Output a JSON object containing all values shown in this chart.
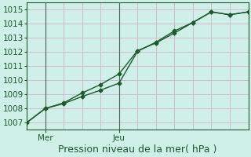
{
  "title": "Pression niveau de la mer( hPa )",
  "background_color": "#cff0e8",
  "plot_bg_color": "#cff0e8",
  "grid_color": "#d8b8d0",
  "line_color": "#1a5c2a",
  "vline_color": "#506050",
  "ylim": [
    1006.5,
    1015.5
  ],
  "yticks": [
    1007,
    1008,
    1009,
    1010,
    1011,
    1012,
    1013,
    1014,
    1015
  ],
  "xlim": [
    0,
    12
  ],
  "xtick_positions": [
    1,
    5
  ],
  "xtick_labels": [
    "Mer",
    "Jeu"
  ],
  "vline_positions": [
    1,
    5
  ],
  "line1_x": [
    0,
    1,
    2,
    3,
    4,
    5,
    6,
    7,
    8,
    9,
    10,
    11,
    12
  ],
  "line1_y": [
    1007.0,
    1008.0,
    1008.35,
    1008.85,
    1009.3,
    1009.8,
    1012.05,
    1012.7,
    1013.5,
    1014.1,
    1014.85,
    1014.65,
    1014.85
  ],
  "line2_x": [
    0,
    1,
    2,
    3,
    4,
    5,
    6,
    7,
    8,
    9,
    10,
    11,
    12
  ],
  "line2_y": [
    1007.0,
    1008.0,
    1008.4,
    1009.1,
    1009.7,
    1010.45,
    1012.1,
    1012.65,
    1013.35,
    1014.1,
    1014.85,
    1014.65,
    1014.85
  ],
  "marker_style": "D",
  "marker_size": 2.5,
  "line_width": 1.0,
  "title_fontsize": 9,
  "tick_fontsize": 7.5,
  "xgrid_positions": [
    0,
    1,
    2,
    3,
    4,
    5,
    6,
    7,
    8,
    9,
    10,
    11,
    12
  ]
}
